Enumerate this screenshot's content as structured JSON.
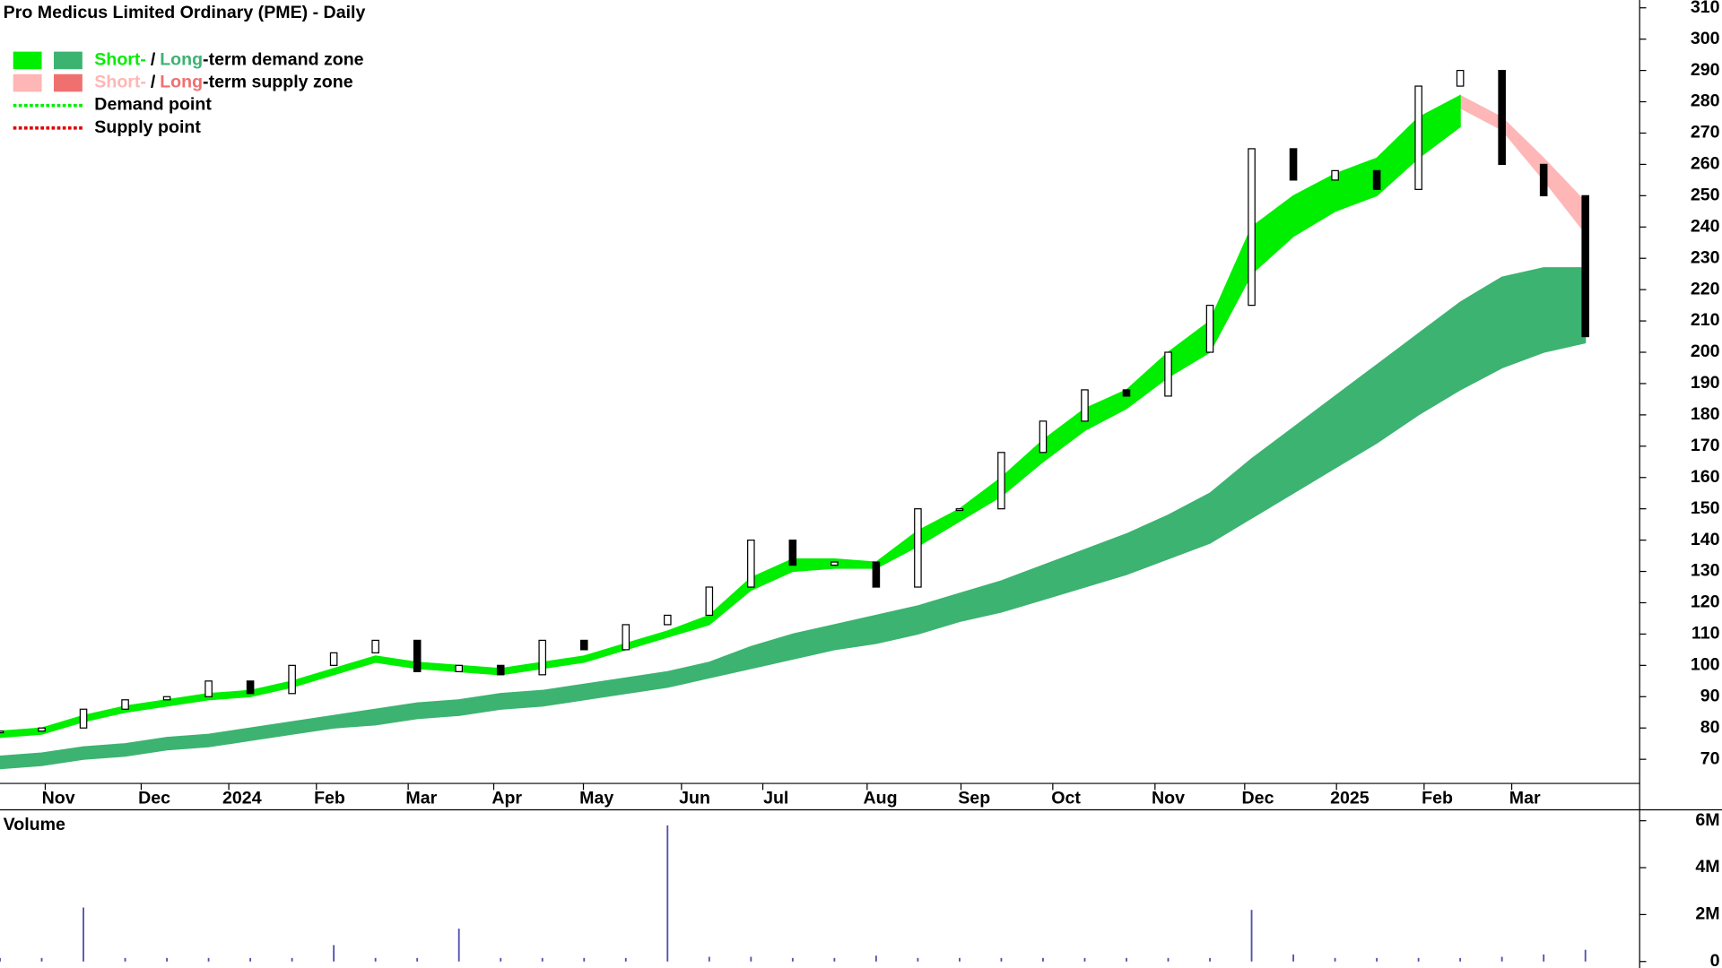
{
  "chart_data": {
    "type": "candlestick",
    "title": "Pro Medicus Limited Ordinary (PME) - Daily",
    "legend": [
      {
        "parts": [
          "Short-",
          "/",
          "Long",
          "-term demand zone"
        ],
        "colors": [
          "#00ee00",
          "#3cb371"
        ]
      },
      {
        "parts": [
          "Short-",
          "/",
          "Long",
          "-term supply zone"
        ],
        "colors": [
          "#ffb6b6",
          "#f07070"
        ]
      },
      {
        "parts": [
          "Demand point"
        ],
        "colors": [
          "#00ee00"
        ]
      },
      {
        "parts": [
          "Supply point"
        ],
        "colors": [
          "#e00000"
        ]
      }
    ],
    "xlim": [
      0,
      39.3
    ],
    "xticks": [
      {
        "value": 1.4,
        "label": "Nov"
      },
      {
        "value": 3.7,
        "label": "Dec"
      },
      {
        "value": 5.8,
        "label": "2024"
      },
      {
        "value": 7.9,
        "label": "Feb"
      },
      {
        "value": 10.1,
        "label": "Mar"
      },
      {
        "value": 12.15,
        "label": "Apr"
      },
      {
        "value": 14.3,
        "label": "May"
      },
      {
        "value": 16.65,
        "label": "Jun"
      },
      {
        "value": 18.6,
        "label": "Jul"
      },
      {
        "value": 21.1,
        "label": "Aug"
      },
      {
        "value": 23.35,
        "label": "Sep"
      },
      {
        "value": 25.55,
        "label": "Oct"
      },
      {
        "value": 28,
        "label": "Nov"
      },
      {
        "value": 30.15,
        "label": "Dec"
      },
      {
        "value": 32.35,
        "label": "2025"
      },
      {
        "value": 34.45,
        "label": "Feb"
      },
      {
        "value": 36.55,
        "label": "Mar"
      }
    ],
    "ylim": [
      62.3,
      312.5
    ],
    "yticks": [
      70,
      80,
      90,
      100,
      110,
      120,
      130,
      140,
      150,
      160,
      170,
      180,
      190,
      200,
      210,
      220,
      230,
      240,
      250,
      260,
      270,
      280,
      290,
      300,
      310
    ],
    "close": [
      79,
      80,
      86,
      89,
      90,
      95,
      91,
      100,
      104,
      108,
      98,
      100,
      97,
      108,
      105,
      113,
      116,
      125,
      140,
      132,
      133,
      125,
      150,
      150,
      168,
      178,
      188,
      186,
      200,
      215,
      265,
      255,
      258,
      252,
      285,
      290,
      260,
      250,
      205
    ],
    "zones": [
      {
        "name": "Short-term demand zone",
        "color": "#00ee00",
        "upper": [
          79,
          80,
          84,
          87,
          89,
          91,
          92,
          95,
          99,
          103,
          101,
          100,
          99,
          101,
          103,
          107,
          111,
          116,
          128,
          134,
          134,
          133,
          143,
          150,
          160,
          172,
          182,
          188,
          200,
          210,
          240,
          250,
          257,
          262,
          275,
          282,
          null,
          null,
          null
        ],
        "lower": [
          77,
          78,
          82,
          85,
          87,
          89,
          90,
          93,
          97,
          101,
          99,
          98,
          97,
          99,
          101,
          105,
          109,
          113,
          124,
          130,
          131,
          131,
          138,
          146,
          154,
          165,
          175,
          182,
          192,
          200,
          225,
          237,
          245,
          250,
          262,
          272,
          null,
          null,
          null
        ]
      },
      {
        "name": "Short-term supply zone",
        "color": "#ffb6b6",
        "upper": [
          null,
          null,
          null,
          null,
          null,
          null,
          null,
          null,
          null,
          null,
          null,
          null,
          null,
          null,
          null,
          null,
          null,
          null,
          null,
          null,
          null,
          null,
          null,
          null,
          null,
          null,
          null,
          null,
          null,
          null,
          null,
          null,
          null,
          null,
          null,
          282,
          275,
          262,
          248
        ],
        "lower": [
          null,
          null,
          null,
          null,
          null,
          null,
          null,
          null,
          null,
          null,
          null,
          null,
          null,
          null,
          null,
          null,
          null,
          null,
          null,
          null,
          null,
          null,
          null,
          null,
          null,
          null,
          null,
          null,
          null,
          null,
          null,
          null,
          null,
          null,
          null,
          278,
          271,
          255,
          238
        ]
      },
      {
        "name": "Long-term demand zone",
        "color": "#3cb371",
        "upper": [
          71,
          72,
          74,
          75,
          77,
          78,
          80,
          82,
          84,
          86,
          88,
          89,
          91,
          92,
          94,
          96,
          98,
          101,
          106,
          110,
          113,
          116,
          119,
          123,
          127,
          132,
          137,
          142,
          148,
          155,
          166,
          176,
          186,
          196,
          206,
          216,
          224,
          227,
          227
        ],
        "lower": [
          67,
          68,
          70,
          71,
          73,
          74,
          76,
          78,
          80,
          81,
          83,
          84,
          86,
          87,
          89,
          91,
          93,
          96,
          99,
          102,
          105,
          107,
          110,
          114,
          117,
          121,
          125,
          129,
          134,
          139,
          147,
          155,
          163,
          171,
          180,
          188,
          195,
          200,
          203
        ]
      }
    ],
    "volume": {
      "title": "Volume",
      "color": "#5050b0",
      "values": [
        150000,
        150000,
        2300000,
        150000,
        150000,
        150000,
        150000,
        150000,
        700000,
        150000,
        150000,
        1400000,
        150000,
        150000,
        150000,
        150000,
        5800000,
        200000,
        200000,
        150000,
        150000,
        250000,
        150000,
        150000,
        150000,
        150000,
        150000,
        150000,
        150000,
        150000,
        2200000,
        300000,
        150000,
        150000,
        150000,
        150000,
        200000,
        300000,
        500000
      ],
      "ylim": [
        -230000,
        6420000
      ],
      "yticks": [
        {
          "value": 0,
          "label": "0"
        },
        {
          "value": 2000000,
          "label": "2M"
        },
        {
          "value": 4000000,
          "label": "4M"
        },
        {
          "value": 6000000,
          "label": "6M"
        }
      ]
    }
  }
}
